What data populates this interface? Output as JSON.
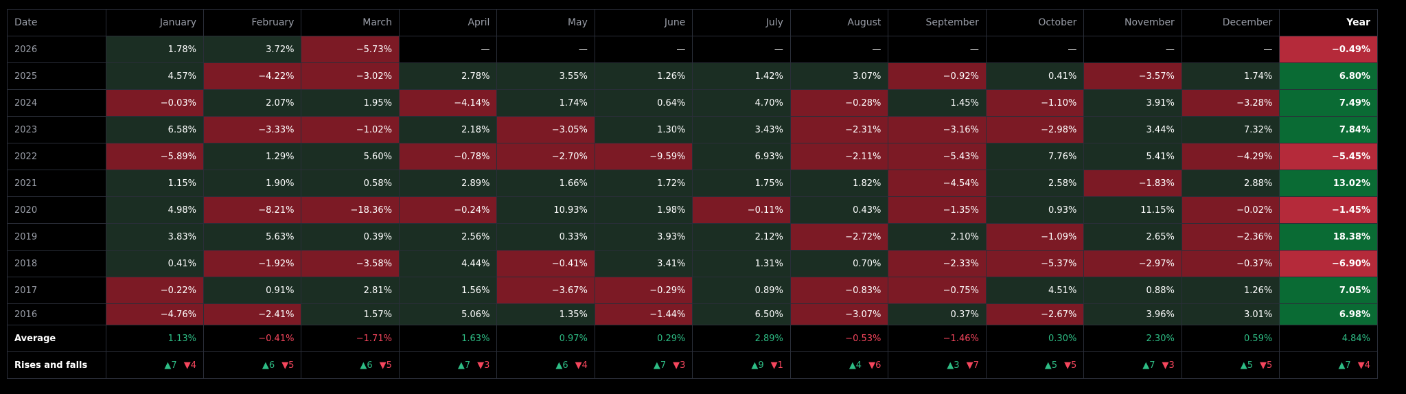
{
  "headers": {
    "date": "Date",
    "months": [
      "January",
      "February",
      "March",
      "April",
      "May",
      "June",
      "July",
      "August",
      "September",
      "October",
      "November",
      "December"
    ],
    "year": "Year"
  },
  "rows": [
    {
      "year": "2026",
      "months": [
        "1.78%",
        "3.72%",
        "−5.73%",
        "—",
        "—",
        "—",
        "—",
        "—",
        "—",
        "—",
        "—",
        "—"
      ],
      "total": "−0.49%"
    },
    {
      "year": "2025",
      "months": [
        "4.57%",
        "−4.22%",
        "−3.02%",
        "2.78%",
        "3.55%",
        "1.26%",
        "1.42%",
        "3.07%",
        "−0.92%",
        "0.41%",
        "−3.57%",
        "1.74%"
      ],
      "total": "6.80%"
    },
    {
      "year": "2024",
      "months": [
        "−0.03%",
        "2.07%",
        "1.95%",
        "−4.14%",
        "1.74%",
        "0.64%",
        "4.70%",
        "−0.28%",
        "1.45%",
        "−1.10%",
        "3.91%",
        "−3.28%"
      ],
      "total": "7.49%"
    },
    {
      "year": "2023",
      "months": [
        "6.58%",
        "−3.33%",
        "−1.02%",
        "2.18%",
        "−3.05%",
        "1.30%",
        "3.43%",
        "−2.31%",
        "−3.16%",
        "−2.98%",
        "3.44%",
        "7.32%"
      ],
      "total": "7.84%"
    },
    {
      "year": "2022",
      "months": [
        "−5.89%",
        "1.29%",
        "5.60%",
        "−0.78%",
        "−2.70%",
        "−9.59%",
        "6.93%",
        "−2.11%",
        "−5.43%",
        "7.76%",
        "5.41%",
        "−4.29%"
      ],
      "total": "−5.45%"
    },
    {
      "year": "2021",
      "months": [
        "1.15%",
        "1.90%",
        "0.58%",
        "2.89%",
        "1.66%",
        "1.72%",
        "1.75%",
        "1.82%",
        "−4.54%",
        "2.58%",
        "−1.83%",
        "2.88%"
      ],
      "total": "13.02%"
    },
    {
      "year": "2020",
      "months": [
        "4.98%",
        "−8.21%",
        "−18.36%",
        "−0.24%",
        "10.93%",
        "1.98%",
        "−0.11%",
        "0.43%",
        "−1.35%",
        "0.93%",
        "11.15%",
        "−0.02%"
      ],
      "total": "−1.45%"
    },
    {
      "year": "2019",
      "months": [
        "3.83%",
        "5.63%",
        "0.39%",
        "2.56%",
        "0.33%",
        "3.93%",
        "2.12%",
        "−2.72%",
        "2.10%",
        "−1.09%",
        "2.65%",
        "−2.36%"
      ],
      "total": "18.38%"
    },
    {
      "year": "2018",
      "months": [
        "0.41%",
        "−1.92%",
        "−3.58%",
        "4.44%",
        "−0.41%",
        "3.41%",
        "1.31%",
        "0.70%",
        "−2.33%",
        "−5.37%",
        "−2.97%",
        "−0.37%"
      ],
      "total": "−6.90%"
    },
    {
      "year": "2017",
      "months": [
        "−0.22%",
        "0.91%",
        "2.81%",
        "1.56%",
        "−3.67%",
        "−0.29%",
        "0.89%",
        "−0.83%",
        "−0.75%",
        "4.51%",
        "0.88%",
        "1.26%"
      ],
      "total": "7.05%"
    },
    {
      "year": "2016",
      "months": [
        "−4.76%",
        "−2.41%",
        "1.57%",
        "5.06%",
        "1.35%",
        "−1.44%",
        "6.50%",
        "−3.07%",
        "0.37%",
        "−2.67%",
        "3.96%",
        "3.01%"
      ],
      "total": "6.98%"
    }
  ],
  "average": {
    "label": "Average",
    "months": [
      "1.13%",
      "−0.41%",
      "−1.71%",
      "1.63%",
      "0.97%",
      "0.29%",
      "2.89%",
      "−0.53%",
      "−1.46%",
      "0.30%",
      "2.30%",
      "0.59%"
    ],
    "total": "4.84%"
  },
  "rises_falls": {
    "label": "Rises and falls",
    "months": [
      {
        "rises": "▲7",
        "falls": "▼4"
      },
      {
        "rises": "▲6",
        "falls": "▼5"
      },
      {
        "rises": "▲6",
        "falls": "▼5"
      },
      {
        "rises": "▲7",
        "falls": "▼3"
      },
      {
        "rises": "▲6",
        "falls": "▼4"
      },
      {
        "rises": "▲7",
        "falls": "▼3"
      },
      {
        "rises": "▲9",
        "falls": "▼1"
      },
      {
        "rises": "▲4",
        "falls": "▼6"
      },
      {
        "rises": "▲3",
        "falls": "▼7"
      },
      {
        "rises": "▲5",
        "falls": "▼5"
      },
      {
        "rises": "▲7",
        "falls": "▼3"
      },
      {
        "rises": "▲5",
        "falls": "▼5"
      }
    ],
    "total": {
      "rises": "▲7",
      "falls": "▼4"
    }
  },
  "colors": {
    "positive_cell": "#1b2e23",
    "negative_cell": "#7c1a25",
    "positive_year": "#0a6b34",
    "negative_year": "#b52a3a",
    "positive_text": "#2ebd85",
    "negative_text": "#f6465d"
  }
}
